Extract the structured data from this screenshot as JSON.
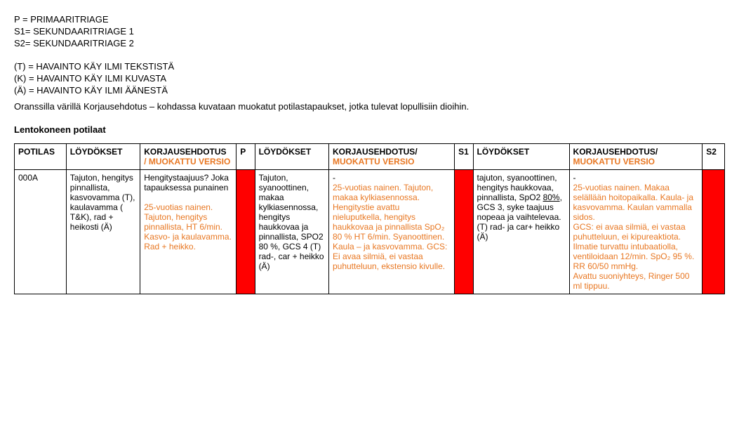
{
  "legend": {
    "p": "P = PRIMAARITRIAGE",
    "s1": "S1= SEKUNDAARITRIAGE 1",
    "s2": "S2= SEKUNDAARITRIAGE 2",
    "t": "(T) = HAVAINTO KÄY ILMI TEKSTISTÄ",
    "k": "(K) = HAVAINTO KÄY ILMI KUVASTA",
    "a": "(Ä) = HAVAINTO KÄY ILMI ÄÄNESTÄ"
  },
  "note": "Oranssilla värillä Korjausehdotus – kohdassa kuvataan muokatut potilastapaukset, jotka tulevat lopullisiin dioihin.",
  "section_title": "Lentokoneen potilaat",
  "headers": {
    "potilas": "POTILAS",
    "loydokset": "LÖYDÖKSET",
    "korjaus_prefix": "KORJAUSEHDOTUS",
    "korjaus_slash": "/ ",
    "korjaus_muokattu": "MUOKATTU VERSIO",
    "korjaus2_prefix": "KORJAUSEHDOTUS/",
    "p": "P",
    "s1": "S1",
    "s2": "S2"
  },
  "colwidths": {
    "potilas": "7%",
    "loydokset": "10%",
    "korjaus1": "13%",
    "p": "2.5%",
    "loydokset2": "10%",
    "korjaus2": "17%",
    "s1": "2.5%",
    "loydokset3": "13%",
    "korjaus3": "18%",
    "s2": "3%"
  },
  "row": {
    "potilas": "000A",
    "loydokset1": "Tajuton, hengitys pinnallista, kasvovamma (T), kaulavamma ( T&K), rad + heikosti (Ä)",
    "korjaus1_plain": "Hengitystaajuus? Joka tapauksessa punainen",
    "korjaus1_orange": "25-vuotias nainen. Tajuton, hengitys pinnallista, HT 6/min. Kasvo- ja kaulavamma. Rad + heikko.",
    "p_color": "#ff0000",
    "loydokset2": "Tajuton, syanoottinen, makaa kylkiasennossa, hengitys haukkovaa ja pinnallista, SPO2 80 %, GCS 4 (T) rad-, car + heikko (Ä)",
    "korjaus2_dash": "-",
    "korjaus2_orange": "25-vuotias nainen. Tajuton, makaa kylkiasennossa. Hengitystie avattu nieluputkella, hengitys haukkovaa ja pinnallista SpO₂ 80 % HT 6/min. Syanoottinen. Kaula – ja kasvovamma. GCS: Ei avaa silmiä, ei vastaa puhutteluun, ekstensio kivulle.",
    "s1_color": "#ff0000",
    "loydokset3": "tajuton, syanoottinen, hengitys haukkovaa, pinnallista, SpO2 80%, GCS 3, syke taajuus nopeaa ja vaihtelevaa. (T) rad- ja car+ heikko (Ä)",
    "korjaus3_dash": "-",
    "korjaus3_orange": "25-vuotias nainen. Makaa selällään hoitopaikalla. Kaula- ja kasvovamma. Kaulan vammalla sidos.\nGCS: ei avaa silmiä, ei vastaa puhutteluun, ei kipureaktiota. Ilmatie turvattu intubaatiolla, ventiloidaan 12/min. SpO₂ 95 %. RR 60/50 mmHg.\nAvattu suoniyhteys, Ringer 500 ml tippuu.",
    "s2_color": "#ff0000"
  },
  "colors": {
    "orange": "#e87722",
    "red": "#ff0000",
    "black": "#000000"
  }
}
